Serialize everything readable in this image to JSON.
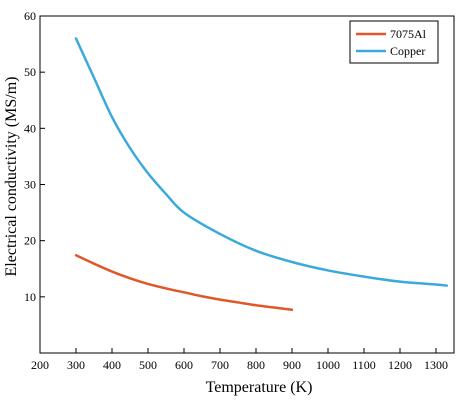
{
  "chart_data": {
    "type": "line",
    "title": "",
    "xlabel": "Temperature (K)",
    "ylabel": "Electrical conductivity (MS/m)",
    "xlim": [
      200,
      1350
    ],
    "ylim": [
      0,
      60
    ],
    "xticks": [
      200,
      300,
      400,
      500,
      600,
      700,
      800,
      900,
      1000,
      1100,
      1200,
      1300
    ],
    "yticks": [
      10,
      20,
      30,
      40,
      50,
      60
    ],
    "grid": false,
    "legend_position": "top-right",
    "series": [
      {
        "name": "7075Al",
        "color": "#e0582a",
        "x": [
          300,
          350,
          400,
          450,
          500,
          550,
          600,
          650,
          700,
          750,
          800,
          850,
          900
        ],
        "y": [
          17.4,
          15.9,
          14.5,
          13.3,
          12.3,
          11.5,
          10.8,
          10.1,
          9.5,
          9.0,
          8.5,
          8.1,
          7.7
        ]
      },
      {
        "name": "Copper",
        "color": "#3ba9dc",
        "x": [
          300,
          350,
          400,
          450,
          500,
          550,
          600,
          700,
          800,
          900,
          1000,
          1100,
          1200,
          1300,
          1330
        ],
        "y": [
          56.0,
          49.0,
          42.0,
          36.5,
          32.0,
          28.3,
          25.0,
          21.2,
          18.2,
          16.2,
          14.7,
          13.6,
          12.7,
          12.2,
          12.0
        ]
      }
    ]
  }
}
